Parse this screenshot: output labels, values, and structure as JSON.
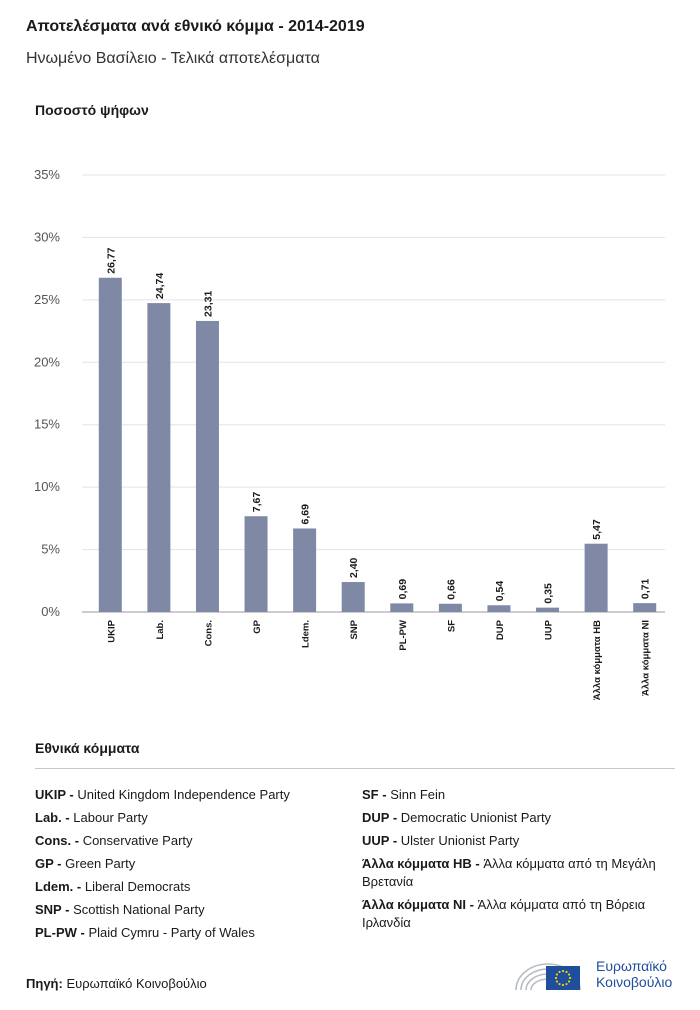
{
  "title": "Αποτελέσματα ανά εθνικό κόμμα - 2014-2019",
  "subtitle": "Ηνωμένο Βασίλειο - Τελικά αποτελέσματα",
  "chart_data": {
    "type": "bar",
    "ylabel": "Ποσοστό ψήφων",
    "ylim": [
      0,
      35
    ],
    "yticks": [
      "0%",
      "5%",
      "10%",
      "15%",
      "20%",
      "25%",
      "30%",
      "35%"
    ],
    "ytick_values": [
      0,
      5,
      10,
      15,
      20,
      25,
      30,
      35
    ],
    "grid": true,
    "bar_color": "#7f89a5",
    "categories": [
      "UKIP",
      "Lab.",
      "Cons.",
      "GP",
      "Ldem.",
      "SNP",
      "PL-PW",
      "SF",
      "DUP",
      "UUP",
      "Άλλα κόμματα HB",
      "Άλλα κόμματα NI"
    ],
    "values": [
      26.77,
      24.74,
      23.31,
      7.67,
      6.69,
      2.4,
      0.69,
      0.66,
      0.54,
      0.35,
      5.47,
      0.71
    ],
    "value_labels": [
      "26,77",
      "24,74",
      "23,31",
      "7,67",
      "6,69",
      "2,40",
      "0,69",
      "0,66",
      "0,54",
      "0,35",
      "5,47",
      "0,71"
    ]
  },
  "legend": {
    "title": "Εθνικά κόμματα",
    "left": [
      {
        "abbr": "UKIP -",
        "name": "United Kingdom Independence Party"
      },
      {
        "abbr": "Lab. -",
        "name": "Labour Party"
      },
      {
        "abbr": "Cons. -",
        "name": "Conservative Party"
      },
      {
        "abbr": "GP -",
        "name": "Green Party"
      },
      {
        "abbr": "Ldem. -",
        "name": "Liberal Democrats"
      },
      {
        "abbr": "SNP -",
        "name": "Scottish National Party"
      },
      {
        "abbr": "PL-PW -",
        "name": "Plaid Cymru - Party of Wales"
      }
    ],
    "right": [
      {
        "abbr": "SF -",
        "name": "Sinn Fein"
      },
      {
        "abbr": "DUP -",
        "name": "Democratic Unionist Party"
      },
      {
        "abbr": "UUP -",
        "name": "Ulster Unionist Party"
      },
      {
        "abbr": "Άλλα κόμματα HB -",
        "name": "Άλλα κόμματα από τη Μεγάλη Βρετανία"
      },
      {
        "abbr": "Άλλα κόμματα NI -",
        "name": "Άλλα κόμματα από τη Βόρεια Ιρλανδία"
      }
    ]
  },
  "source": {
    "label": "Πηγή:",
    "text": "Ευρωπαϊκό Κοινοβούλιο"
  },
  "logo": {
    "line1": "Ευρωπαϊκό",
    "line2": "Κοινοβούλιο",
    "color": "#1f4e9c",
    "flag_color": "#1f4e9c",
    "star_color": "#f5d000"
  }
}
